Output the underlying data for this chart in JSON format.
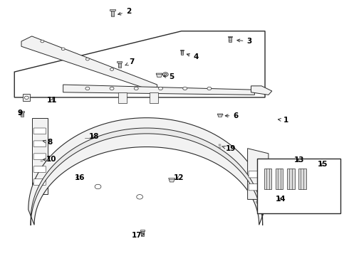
{
  "bg_color": "#ffffff",
  "line_color": "#2a2a2a",
  "fig_width": 4.9,
  "fig_height": 3.6,
  "dpi": 100,
  "callouts": {
    "1": [
      0.82,
      0.53,
      0.79,
      0.535
    ],
    "2": [
      0.368,
      0.956,
      0.33,
      0.943
    ],
    "3": [
      0.715,
      0.84,
      0.672,
      0.845
    ],
    "4": [
      0.562,
      0.778,
      0.528,
      0.793
    ],
    "5": [
      0.492,
      0.7,
      0.46,
      0.705
    ],
    "6": [
      0.676,
      0.548,
      0.638,
      0.548
    ],
    "7": [
      0.378,
      0.758,
      0.352,
      0.742
    ],
    "8": [
      0.142,
      0.443,
      0.12,
      0.45
    ],
    "9": [
      0.056,
      0.558,
      0.068,
      0.554
    ],
    "10": [
      0.146,
      0.376,
      0.12,
      0.376
    ],
    "11": [
      0.148,
      0.608,
      0.152,
      0.618
    ],
    "12": [
      0.512,
      0.304,
      0.498,
      0.298
    ],
    "13": [
      0.858,
      0.374,
      0.845,
      0.376
    ],
    "14": [
      0.806,
      0.22,
      0.796,
      0.225
    ],
    "15": [
      0.926,
      0.358,
      0.918,
      0.354
    ],
    "16": [
      0.228,
      0.306,
      0.21,
      0.308
    ],
    "17": [
      0.392,
      0.08,
      0.415,
      0.085
    ],
    "18": [
      0.268,
      0.466,
      0.265,
      0.458
    ],
    "19": [
      0.662,
      0.418,
      0.636,
      0.428
    ]
  }
}
